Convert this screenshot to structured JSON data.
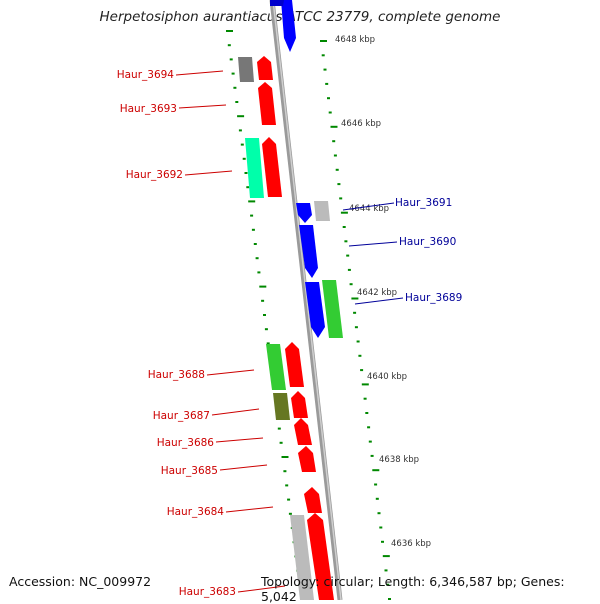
{
  "title": "Herpetosiphon aurantiacus ATCC 23779, complete genome",
  "footer": {
    "accession": "Accession: NC_009972",
    "summary": "Topology: circular; Length: 6,346,587 bp; Genes: 5,042"
  },
  "ticks": [
    "4648 kbp",
    "4646 kbp",
    "4644 kbp",
    "4642 kbp",
    "4640 kbp",
    "4638 kbp",
    "4636 kbp"
  ],
  "genes": [
    {
      "label": "Haur_3694",
      "strand": "left",
      "color": "#cc0000"
    },
    {
      "label": "Haur_3693",
      "strand": "left",
      "color": "#cc0000"
    },
    {
      "label": "Haur_3692",
      "strand": "left",
      "color": "#cc0000"
    },
    {
      "label": "Haur_3691",
      "strand": "right",
      "color": "#000099"
    },
    {
      "label": "Haur_3690",
      "strand": "right",
      "color": "#000099"
    },
    {
      "label": "Haur_3689",
      "strand": "right",
      "color": "#000099"
    },
    {
      "label": "Haur_3688",
      "strand": "left",
      "color": "#cc0000"
    },
    {
      "label": "Haur_3687",
      "strand": "left",
      "color": "#cc0000"
    },
    {
      "label": "Haur_3686",
      "strand": "left",
      "color": "#cc0000"
    },
    {
      "label": "Haur_3685",
      "strand": "left",
      "color": "#cc0000"
    },
    {
      "label": "Haur_3684",
      "strand": "left",
      "color": "#cc0000"
    },
    {
      "label": "Haur_3683",
      "strand": "left",
      "color": "#cc0000"
    }
  ],
  "colors": {
    "red": "#ff0000",
    "blue": "#0000ff",
    "green": "#33cc33",
    "teal": "#00ffaa",
    "gray": "#bbbbbb",
    "darkgray": "#777777",
    "olive": "#667722",
    "tick": "#008800",
    "backbone": "#888888"
  }
}
